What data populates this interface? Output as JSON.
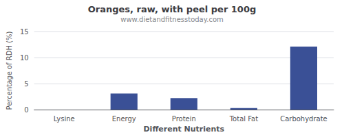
{
  "chart_data": {
    "type": "bar",
    "title": "Oranges, raw, with peel per 100g",
    "subtitle": "www.dietandfitnesstoday.com",
    "xlabel": "Different Nutrients",
    "ylabel": "Percentage of RDH (%)",
    "categories": [
      "Lysine",
      "Energy",
      "Protein",
      "Total Fat",
      "Carbohydrate"
    ],
    "values": [
      0.0,
      3.1,
      2.2,
      0.3,
      12.1
    ],
    "color": "#3a5096",
    "ylim": [
      0,
      15
    ],
    "yticks": [
      0,
      5,
      10,
      15
    ],
    "grid": true
  }
}
